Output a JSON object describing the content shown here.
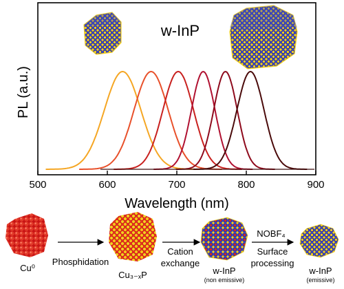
{
  "chart_data": {
    "type": "line",
    "title": "",
    "inset_label": "w-InP",
    "xlabel": "Wavelength (nm)",
    "ylabel": "PL (a.u.)",
    "xlim": [
      500,
      900
    ],
    "xticks": [
      500,
      600,
      700,
      800,
      900
    ],
    "grid": false,
    "y_ticks_shown": false,
    "curve_shape": "normalized PL emission peaks (Gaussian-like)",
    "series": [
      {
        "peak_nm": 622,
        "fwhm_nm": 62,
        "peak_intensity": 1.0,
        "color": "#f5a623"
      },
      {
        "peak_nm": 663,
        "fwhm_nm": 58,
        "peak_intensity": 1.0,
        "color": "#e8502a"
      },
      {
        "peak_nm": 702,
        "fwhm_nm": 52,
        "peak_intensity": 1.0,
        "color": "#c8201e"
      },
      {
        "peak_nm": 738,
        "fwhm_nm": 40,
        "peak_intensity": 1.0,
        "color": "#b01030"
      },
      {
        "peak_nm": 770,
        "fwhm_nm": 40,
        "peak_intensity": 1.0,
        "color": "#8e0a1c"
      },
      {
        "peak_nm": 806,
        "fwhm_nm": 46,
        "peak_intensity": 1.0,
        "color": "#4a0a0a"
      }
    ]
  },
  "scheme": {
    "steps": [
      {
        "label": "Cu⁰"
      },
      {
        "label": "Cu₃₋ₓP"
      },
      {
        "label": "w-InP",
        "sublabel": "(non emissive)"
      },
      {
        "label": "w-InP",
        "sublabel": "(emissive)"
      }
    ],
    "arrows": [
      {
        "below": [
          "Phosphidation"
        ]
      },
      {
        "below": [
          "Cation",
          "exchange"
        ]
      },
      {
        "above": "NOBF₄",
        "below": [
          "Surface",
          "processing"
        ]
      }
    ]
  }
}
